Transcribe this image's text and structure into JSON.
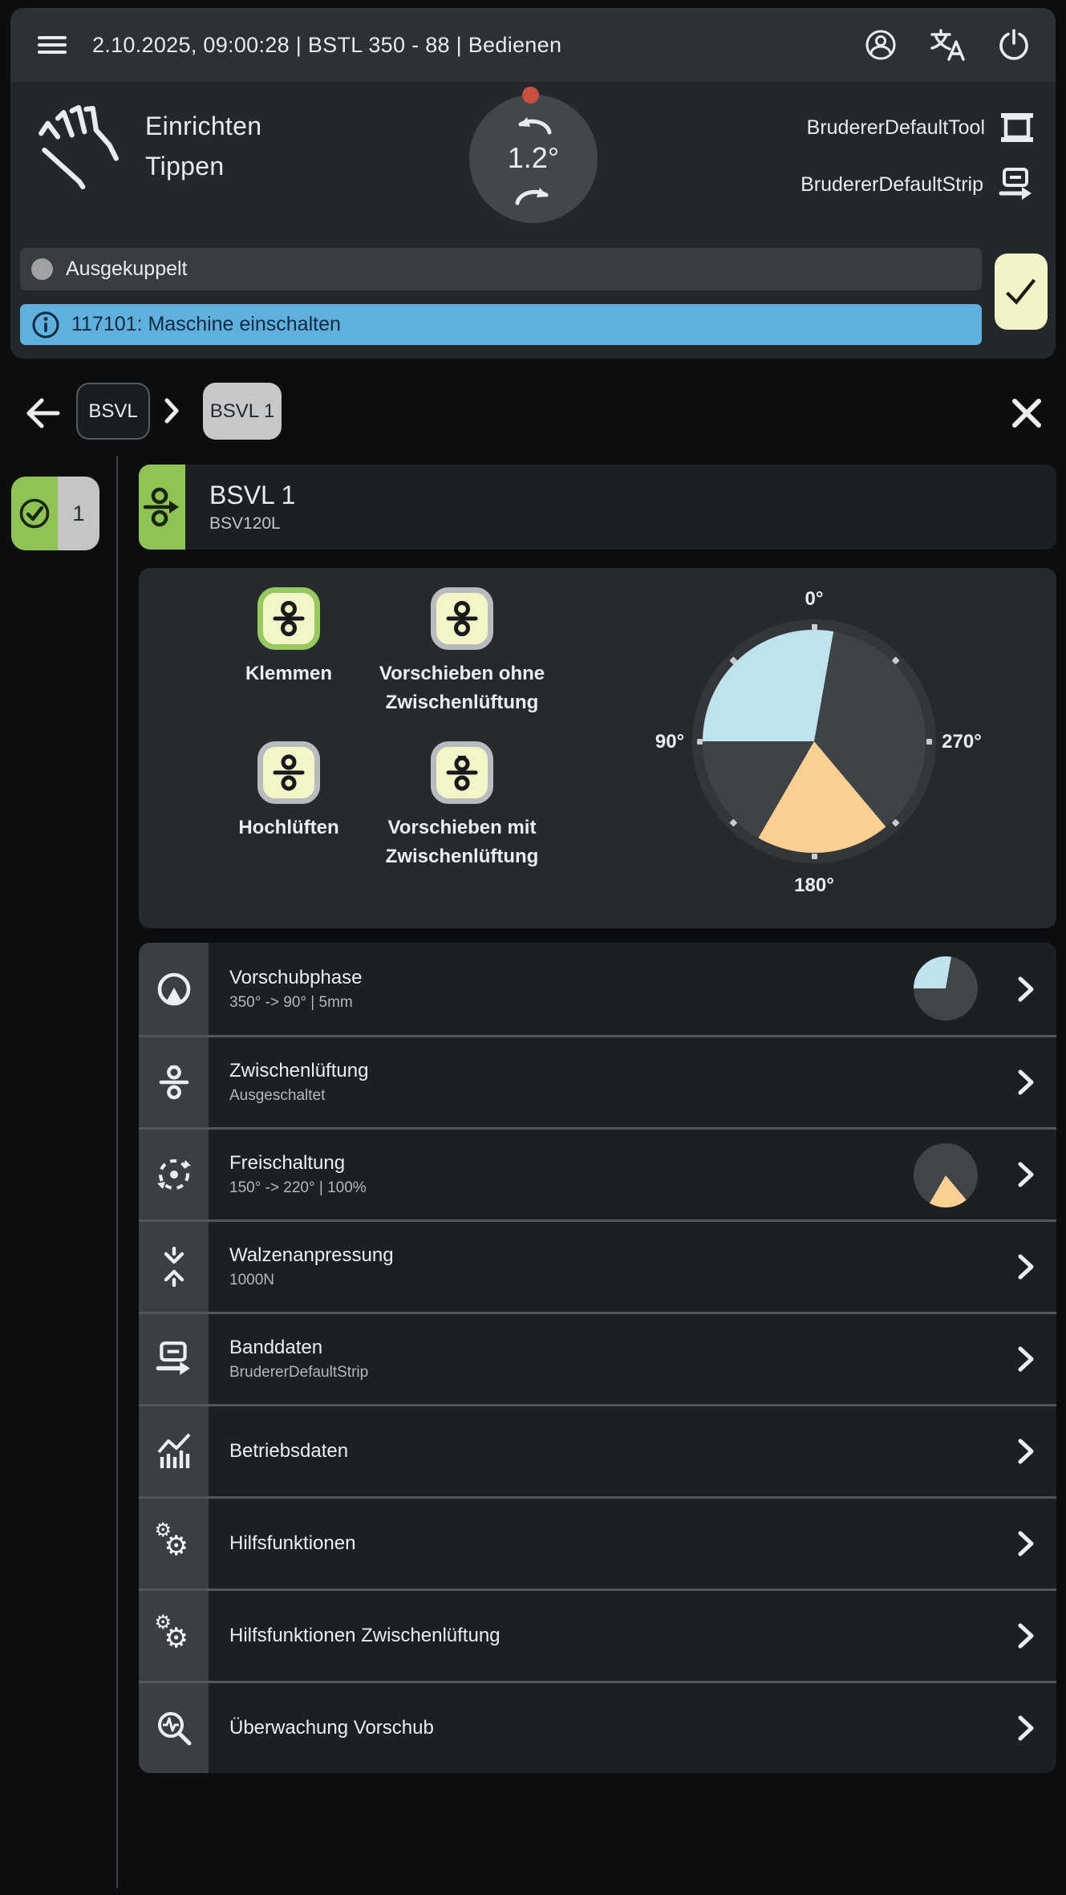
{
  "top_bar": {
    "title": "2.10.2025, 09:00:28 | BSTL 350 - 88 | Bedienen",
    "icons": [
      "menu-icon",
      "account-icon",
      "translate-icon",
      "power-icon"
    ]
  },
  "header": {
    "mode_lines": [
      "Einrichten",
      "Tippen"
    ],
    "dial": {
      "value": "1.2°",
      "marker_color": "#c9503f"
    },
    "tool": {
      "label": "BrudererDefaultTool",
      "icon": "tool-icon"
    },
    "strip": {
      "label": "BrudererDefaultStrip",
      "icon": "strip-out-icon"
    }
  },
  "status_bar": {
    "label": "Ausgekuppelt",
    "dot_color": "#9fa1a3"
  },
  "message_bar": {
    "text": "117101: Maschine einschalten",
    "background": "#5fb0dd",
    "icon": "info-icon"
  },
  "ack_button": {
    "icon": "check-icon",
    "background": "#f1f4c6"
  },
  "breadcrumb": {
    "items": [
      {
        "label": "BSVL",
        "selected": false
      },
      {
        "label": "BSVL 1",
        "selected": true
      }
    ]
  },
  "module_badge": {
    "count": "1",
    "icon": "check-circle-icon",
    "color": "#8dc453"
  },
  "station_card": {
    "title": "BSVL 1",
    "subtitle": "BSV120L",
    "accent": "#8dc453",
    "icon": "feed-rolls-icon"
  },
  "actions": [
    {
      "label": "Klemmen",
      "active": true
    },
    {
      "label": "Vorschieben ohne Zwischenlüftung",
      "active": false
    },
    {
      "label": "Hochlüften",
      "active": false
    },
    {
      "label": "Vorschieben mit Zwischenlüftung",
      "active": false
    }
  ],
  "chart_data": {
    "type": "pie",
    "title": "Feed angle gauge",
    "direction": "degrees counterclockwise from top",
    "tick_labels": [
      "0°",
      "90°",
      "180°",
      "270°"
    ],
    "tick_step_deg": 45,
    "segments": [
      {
        "name": "Vorschubphase",
        "start_deg": 350,
        "end_deg": 90,
        "color": "#bfe3ed"
      },
      {
        "name": "Freischaltung",
        "start_deg": 150,
        "end_deg": 220,
        "color": "#f9d091"
      }
    ],
    "base_color": "#3e4348"
  },
  "list": [
    {
      "title": "Vorschubphase",
      "subtitle": "350° -> 90° | 5mm",
      "icon": "feed-phase-icon",
      "pie_segment": 0
    },
    {
      "title": "Zwischenlüftung",
      "subtitle": "Ausgeschaltet",
      "icon": "rollers-icon"
    },
    {
      "title": "Freischaltung",
      "subtitle": "150° -> 220° | 100%",
      "icon": "rotate-icon",
      "pie_segment": 1
    },
    {
      "title": "Walzenanpressung",
      "subtitle": "1000N",
      "icon": "pressure-icon"
    },
    {
      "title": "Banddaten",
      "subtitle": "BrudererDefaultStrip",
      "icon": "strip-out-icon"
    },
    {
      "title": "Betriebsdaten",
      "subtitle": "",
      "icon": "stats-icon"
    },
    {
      "title": "Hilfsfunktionen",
      "subtitle": "",
      "icon": "gears-icon"
    },
    {
      "title": "Hilfsfunktionen Zwischenlüftung",
      "subtitle": "",
      "icon": "gears-icon"
    },
    {
      "title": "Überwachung Vorschub",
      "subtitle": "",
      "icon": "monitor-icon"
    }
  ],
  "colors": {
    "panel": "#24272b",
    "row": "#1d2023",
    "accent_green": "#8dc453",
    "pale_yellow": "#f1f4c6",
    "info_blue": "#5fb0dd",
    "wedge_blue": "#bfe3ed",
    "wedge_orange": "#f9d091",
    "marker_red": "#c9503f"
  }
}
